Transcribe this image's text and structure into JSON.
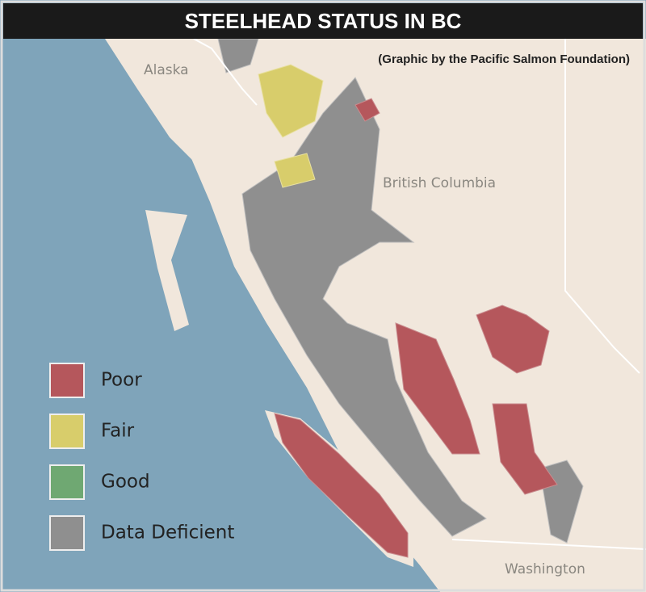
{
  "title": "STEELHEAD STATUS IN BC",
  "credit": "(Graphic by the Pacific Salmon Foundation)",
  "places": [
    "Alaska",
    "British Columbia",
    "Washington"
  ],
  "legend": [
    {
      "name": "Poor",
      "color": "#b5575c"
    },
    {
      "name": "Fair",
      "color": "#d8cd6b"
    },
    {
      "name": "Good",
      "color": "#6fa872"
    },
    {
      "name": "Data Deficient",
      "color": "#8f8f8f"
    }
  ]
}
